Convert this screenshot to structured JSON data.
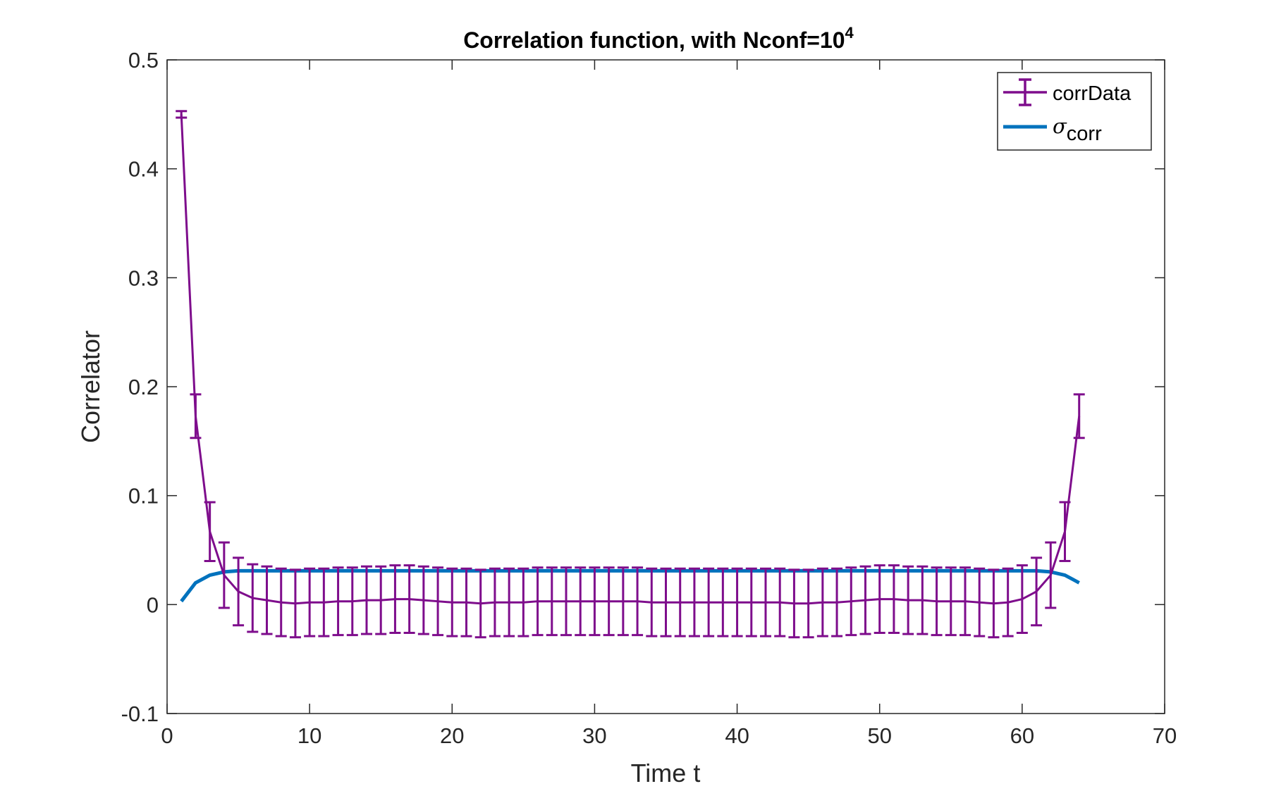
{
  "chart_data": {
    "type": "line",
    "title": {
      "main": "Correlation function, with Nconf=10",
      "superscript": "4"
    },
    "xlabel": "Time t",
    "ylabel": "Correlator",
    "xlim": [
      0,
      70
    ],
    "ylim": [
      -0.1,
      0.5
    ],
    "xticks": [
      0,
      10,
      20,
      30,
      40,
      50,
      60,
      70
    ],
    "xtick_labels": [
      "0",
      "10",
      "20",
      "30",
      "40",
      "50",
      "60",
      "70"
    ],
    "yticks": [
      -0.1,
      0,
      0.1,
      0.2,
      0.3,
      0.4,
      0.5
    ],
    "ytick_labels": [
      "-0.1",
      "0",
      "0.1",
      "0.2",
      "0.3",
      "0.4",
      "0.5"
    ],
    "grid": false,
    "legend_position": "top-right",
    "legend": {
      "corr_label": "corrData",
      "sigma_symbol": "σ",
      "sigma_subscript": "corr"
    },
    "colors": {
      "corrData": "#7E0D8C",
      "sigma_corr": "#0072BD",
      "axes": "#262626"
    },
    "series": [
      {
        "name": "corrData",
        "errorbars": true,
        "x": [
          1,
          2,
          3,
          4,
          5,
          6,
          7,
          8,
          9,
          10,
          11,
          12,
          13,
          14,
          15,
          16,
          17,
          18,
          19,
          20,
          21,
          22,
          23,
          24,
          25,
          26,
          27,
          28,
          29,
          30,
          31,
          32,
          33,
          34,
          35,
          36,
          37,
          38,
          39,
          40,
          41,
          42,
          43,
          44,
          45,
          46,
          47,
          48,
          49,
          50,
          51,
          52,
          53,
          54,
          55,
          56,
          57,
          58,
          59,
          60,
          61,
          62,
          63,
          64
        ],
        "y": [
          0.45,
          0.173,
          0.067,
          0.027,
          0.012,
          0.006,
          0.004,
          0.002,
          0.001,
          0.002,
          0.002,
          0.003,
          0.003,
          0.004,
          0.004,
          0.005,
          0.005,
          0.004,
          0.003,
          0.002,
          0.002,
          0.001,
          0.002,
          0.002,
          0.002,
          0.003,
          0.003,
          0.003,
          0.003,
          0.003,
          0.003,
          0.003,
          0.003,
          0.002,
          0.002,
          0.002,
          0.002,
          0.002,
          0.002,
          0.002,
          0.002,
          0.002,
          0.002,
          0.001,
          0.001,
          0.002,
          0.002,
          0.003,
          0.004,
          0.005,
          0.005,
          0.004,
          0.004,
          0.003,
          0.003,
          0.003,
          0.002,
          0.001,
          0.002,
          0.005,
          0.012,
          0.027,
          0.067,
          0.173
        ],
        "err": [
          0.003,
          0.02,
          0.027,
          0.03,
          0.031,
          0.031,
          0.031,
          0.031,
          0.031,
          0.031,
          0.031,
          0.031,
          0.031,
          0.031,
          0.031,
          0.031,
          0.031,
          0.031,
          0.031,
          0.031,
          0.031,
          0.031,
          0.031,
          0.031,
          0.031,
          0.031,
          0.031,
          0.031,
          0.031,
          0.031,
          0.031,
          0.031,
          0.031,
          0.031,
          0.031,
          0.031,
          0.031,
          0.031,
          0.031,
          0.031,
          0.031,
          0.031,
          0.031,
          0.031,
          0.031,
          0.031,
          0.031,
          0.031,
          0.031,
          0.031,
          0.031,
          0.031,
          0.031,
          0.031,
          0.031,
          0.031,
          0.031,
          0.031,
          0.031,
          0.031,
          0.031,
          0.03,
          0.027,
          0.02
        ]
      },
      {
        "name": "σcorr",
        "errorbars": false,
        "x": [
          1,
          2,
          3,
          4,
          5,
          6,
          7,
          8,
          9,
          10,
          11,
          12,
          13,
          14,
          15,
          16,
          17,
          18,
          19,
          20,
          21,
          22,
          23,
          24,
          25,
          26,
          27,
          28,
          29,
          30,
          31,
          32,
          33,
          34,
          35,
          36,
          37,
          38,
          39,
          40,
          41,
          42,
          43,
          44,
          45,
          46,
          47,
          48,
          49,
          50,
          51,
          52,
          53,
          54,
          55,
          56,
          57,
          58,
          59,
          60,
          61,
          62,
          63,
          64
        ],
        "y": [
          0.003,
          0.02,
          0.027,
          0.03,
          0.031,
          0.031,
          0.031,
          0.031,
          0.031,
          0.031,
          0.031,
          0.031,
          0.031,
          0.031,
          0.031,
          0.031,
          0.031,
          0.031,
          0.031,
          0.031,
          0.031,
          0.031,
          0.031,
          0.031,
          0.031,
          0.031,
          0.031,
          0.031,
          0.031,
          0.031,
          0.031,
          0.031,
          0.031,
          0.031,
          0.031,
          0.031,
          0.031,
          0.031,
          0.031,
          0.031,
          0.031,
          0.031,
          0.031,
          0.031,
          0.031,
          0.031,
          0.031,
          0.031,
          0.031,
          0.031,
          0.031,
          0.031,
          0.031,
          0.031,
          0.031,
          0.031,
          0.031,
          0.031,
          0.031,
          0.031,
          0.031,
          0.03,
          0.027,
          0.02
        ]
      }
    ]
  }
}
